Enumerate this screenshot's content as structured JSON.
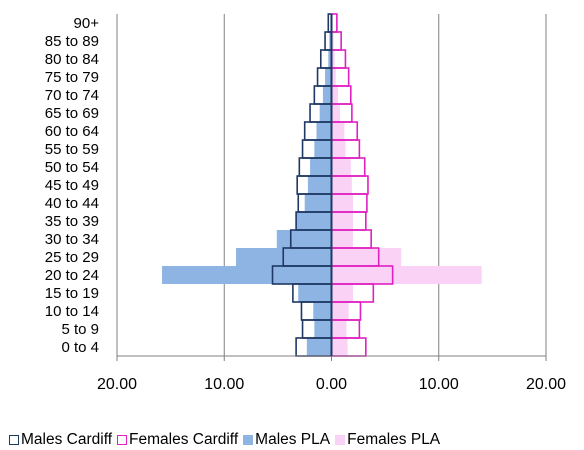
{
  "chart_data": {
    "type": "bar",
    "orientation": "horizontal",
    "subtype": "population-pyramid",
    "categories": [
      "0 to 4",
      "5 to 9",
      "10 to 14",
      "15 to 19",
      "20 to 24",
      "25 to 29",
      "30 to 34",
      "35 to 39",
      "40 to 44",
      "45 to 49",
      "50 to 54",
      "55 to 59",
      "60 to 64",
      "65 to 69",
      "70 to 74",
      "75 to 79",
      "80 to 84",
      "85 to 89",
      "90+"
    ],
    "series": [
      {
        "name": "Males Cardiff",
        "values": [
          3.3,
          2.7,
          2.8,
          3.6,
          5.5,
          4.5,
          3.8,
          3.3,
          3.1,
          3.2,
          3.0,
          2.7,
          2.5,
          2.0,
          1.6,
          1.3,
          1.0,
          0.6,
          0.3
        ],
        "color": "#1f3864",
        "style": "outline"
      },
      {
        "name": "Females Cardiff",
        "values": [
          3.2,
          2.6,
          2.7,
          3.9,
          5.7,
          4.4,
          3.7,
          3.2,
          3.3,
          3.4,
          3.1,
          2.6,
          2.4,
          1.9,
          1.8,
          1.6,
          1.3,
          0.9,
          0.5
        ],
        "color": "#e020c0",
        "style": "outline"
      },
      {
        "name": "Males PLA",
        "values": [
          2.3,
          1.6,
          1.7,
          3.1,
          15.8,
          8.9,
          5.1,
          3.3,
          2.5,
          2.2,
          2.0,
          1.6,
          1.4,
          1.1,
          0.8,
          0.6,
          0.3,
          0.2,
          0.1
        ],
        "color": "#8eb4e3",
        "style": "fill"
      },
      {
        "name": "Females PLA",
        "values": [
          1.5,
          1.4,
          1.6,
          2.0,
          14.0,
          6.5,
          2.0,
          2.0,
          2.0,
          1.9,
          1.8,
          1.3,
          1.2,
          0.8,
          0.6,
          0.4,
          0.3,
          0.2,
          0.1
        ],
        "color": "#fad2f5",
        "style": "fill"
      }
    ],
    "xticks": [
      "20.00",
      "10.00",
      "0.00",
      "10.00",
      "20.00"
    ],
    "xlim": [
      -20,
      20
    ],
    "xlabel": "",
    "ylabel": "",
    "title": "",
    "grid": "vertical",
    "legend_position": "bottom"
  }
}
